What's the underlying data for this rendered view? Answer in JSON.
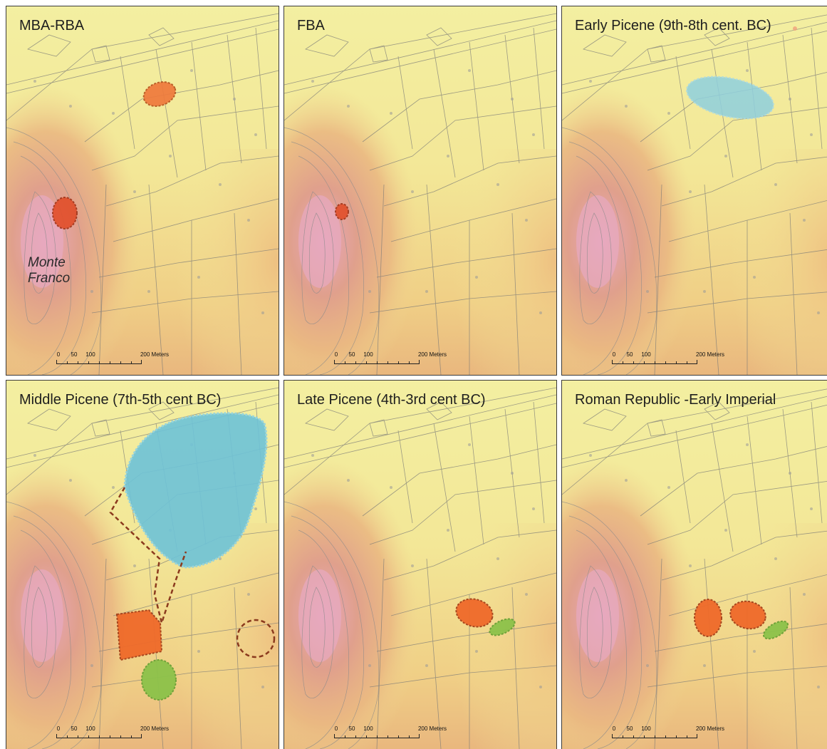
{
  "figure": {
    "panels": [
      {
        "title": "MBA-RBA",
        "place_label_1": "Monte",
        "place_label_2": "Franco"
      },
      {
        "title": "FBA"
      },
      {
        "title": "Early Picene (9th-8th cent. BC)"
      },
      {
        "title": "Middle Picene (7th-5th cent BC)"
      },
      {
        "title": "Late Picene (4th-3rd cent BC)"
      },
      {
        "title": "Roman Republic -Early Imperial"
      }
    ],
    "scale_bar": {
      "labels": [
        "0",
        "50",
        "100",
        "200 Meters"
      ]
    },
    "colors": {
      "background_light": "#f3ee9c",
      "background_warm": "#e9b97e",
      "hill_core": "#e6a4b4",
      "orange_area": "#ef7a3c",
      "red_area": "#e2502c",
      "blue_area": "#7cc3d9",
      "green_area": "#8cc24a",
      "outline": "#8b3a1e"
    }
  }
}
